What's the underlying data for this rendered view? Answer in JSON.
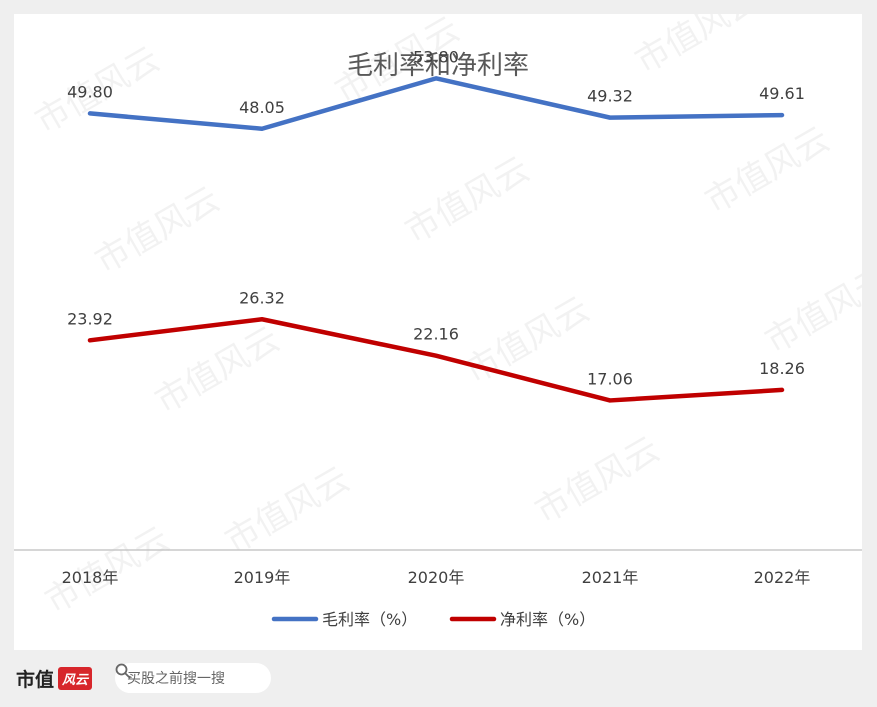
{
  "chart_data": {
    "type": "line",
    "title": "毛利率和净利率",
    "categories": [
      "2018年",
      "2019年",
      "2020年",
      "2021年",
      "2022年"
    ],
    "series": [
      {
        "name": "毛利率（%）",
        "values": [
          49.8,
          48.05,
          53.8,
          49.32,
          49.61
        ],
        "labels": [
          "49.80",
          "48.05",
          "53.80",
          "49.32",
          "49.61"
        ],
        "color": "#4472c4"
      },
      {
        "name": "净利率（%）",
        "values": [
          23.92,
          26.32,
          22.16,
          17.06,
          18.26
        ],
        "labels": [
          "23.92",
          "26.32",
          "22.16",
          "17.06",
          "18.26"
        ],
        "color": "#c00000"
      }
    ],
    "ylim": [
      0,
      60
    ],
    "grid": false,
    "legend": "bottom"
  },
  "watermark": "市值风云",
  "footer": {
    "brand": "市值",
    "brand_logo": "风云",
    "search_placeholder": "买股之前搜一搜",
    "search_icon": "search-icon"
  }
}
